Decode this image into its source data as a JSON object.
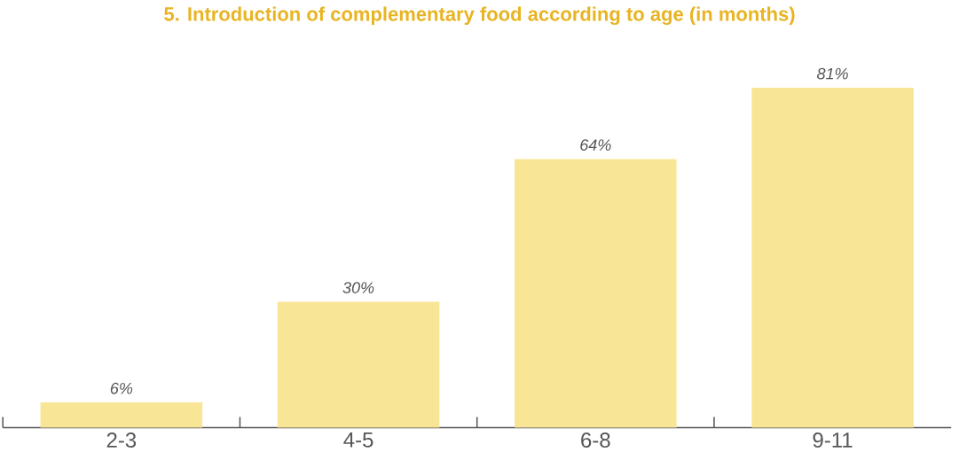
{
  "chart_data": {
    "type": "bar",
    "title": "5. Introduction of complementary food according to age (in months)",
    "categories": [
      "2-3",
      "4-5",
      "6-8",
      "9-11"
    ],
    "values": [
      6,
      30,
      64,
      81
    ],
    "value_labels": [
      "6%",
      "30%",
      "64%",
      "81%"
    ],
    "color": "#f9e596"
  }
}
